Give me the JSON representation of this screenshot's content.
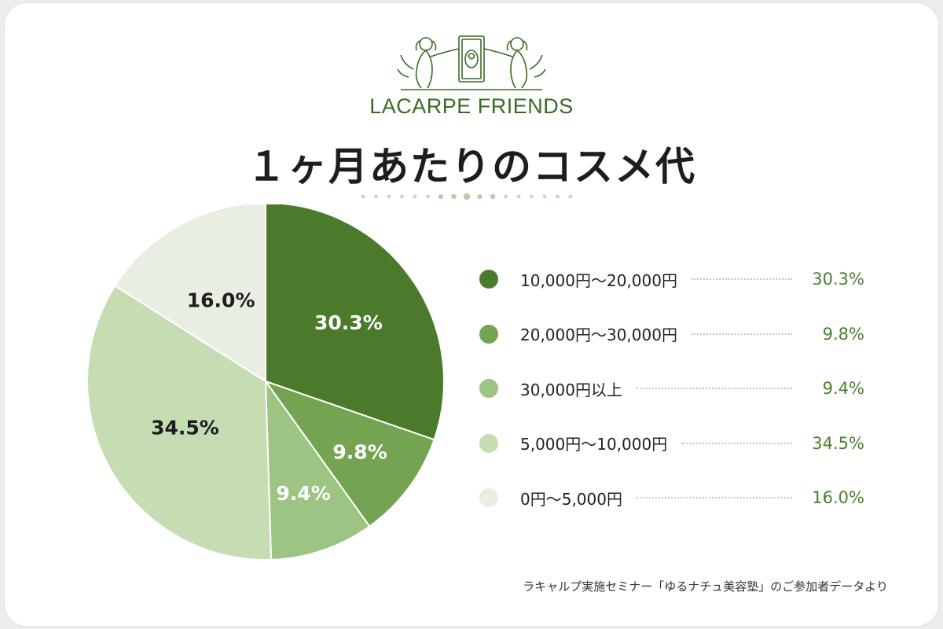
{
  "header": {
    "brand": "LACARPE FRIENDS",
    "title": "１ヶ月あたりのコスメ代"
  },
  "colors": {
    "accent": "#4d7f2c",
    "slice_1": "#4a7a2a",
    "slice_2": "#74a352",
    "slice_3": "#9cc482",
    "slice_4": "#c6ddb4",
    "slice_5": "#e9eee2"
  },
  "chart_data": {
    "type": "pie",
    "categories": [
      "10,000円〜20,000円",
      "20,000円〜30,000円",
      "30,000円以上",
      "5,000円〜10,000円",
      "0円〜5,000円"
    ],
    "values": [
      30.3,
      9.8,
      9.4,
      34.5,
      16.0
    ],
    "data_labels": [
      "30.3%",
      "9.8%",
      "9.4%",
      "34.5%",
      "16.0%"
    ],
    "legend_placement": "right",
    "title": "１ヶ月あたりのコスメ代"
  },
  "footnote": "ラキャルプ実施セミナー「ゆるナチュ美容塾」のご参加者データより"
}
